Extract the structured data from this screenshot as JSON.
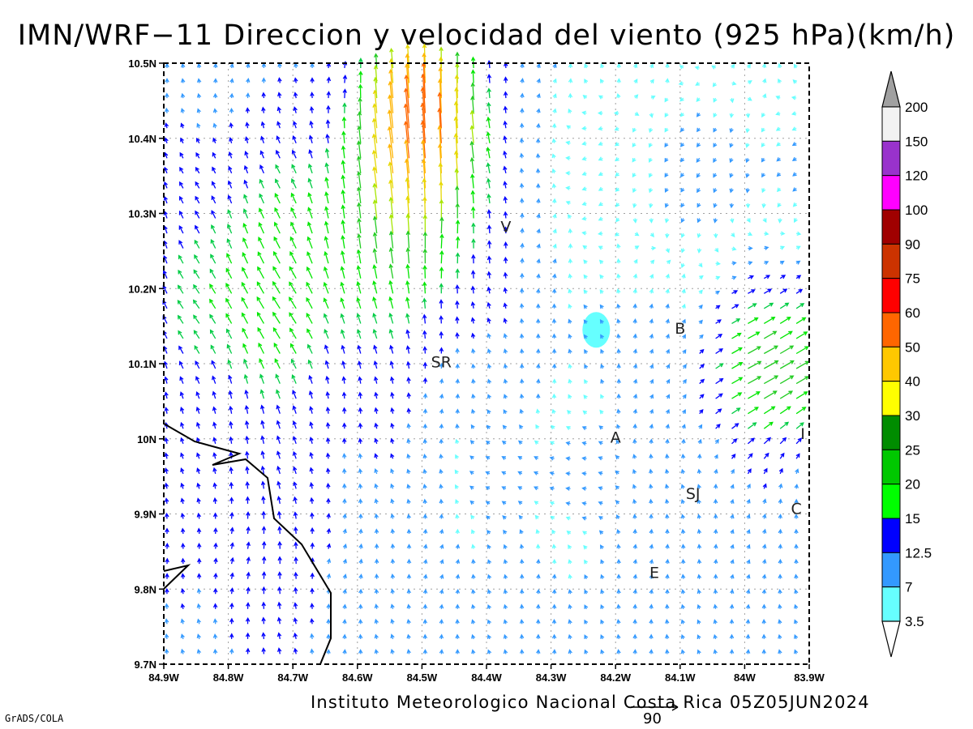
{
  "title": "IMN/WRF−11 Direccion y velocidad del viento (925 hPa)(km/h)",
  "footer": "Instituto Meteorologico Nacional Costa Rica 05Z05JUN2024",
  "credit": "GrADS/COLA",
  "reference_vector_label": "90",
  "colors": {
    "grid": "#a0a0a0",
    "coast": "#000000",
    "plot_bg": "#ffffff"
  },
  "chart_data": {
    "type": "vector_field",
    "title": "IMN/WRF−11 Direccion y velocidad del viento (925 hPa)(km/h)",
    "x_ticks": [
      "84.9W",
      "84.8W",
      "84.7W",
      "84.6W",
      "84.5W",
      "84.4W",
      "84.3W",
      "84.2W",
      "84.1W",
      "84W",
      "83.9W"
    ],
    "y_ticks": [
      "10.5N",
      "10.4N",
      "10.3N",
      "10.2N",
      "10.1N",
      "10N",
      "9.9N",
      "9.8N",
      "9.7N"
    ],
    "lon_range": [
      -84.9,
      -83.9
    ],
    "lat_range": [
      9.7,
      10.5
    ],
    "grid": true,
    "colorbar": {
      "levels": [
        "200",
        "150",
        "120",
        "100",
        "90",
        "75",
        "60",
        "50",
        "40",
        "30",
        "25",
        "20",
        "15",
        "12.5",
        "7",
        "3.5"
      ],
      "colors": [
        "#a0a0a0",
        "#f2f2f2",
        "#9932cc",
        "#ff00ff",
        "#a00000",
        "#cc3300",
        "#ff0000",
        "#ff6600",
        "#ffc800",
        "#ffff00",
        "#008c00",
        "#00c800",
        "#00ff00",
        "#0000ff",
        "#3399ff",
        "#66ffff"
      ],
      "position": "right"
    },
    "stations": [
      {
        "label": "V",
        "lon": -84.37,
        "lat": 10.275
      },
      {
        "label": "B",
        "lon": -84.1,
        "lat": 10.14
      },
      {
        "label": "SR",
        "lon": -84.47,
        "lat": 10.095
      },
      {
        "label": "A",
        "lon": -84.2,
        "lat": 9.995
      },
      {
        "label": "SJ",
        "lon": -84.08,
        "lat": 9.92
      },
      {
        "label": "C",
        "lon": -83.92,
        "lat": 9.9
      },
      {
        "label": "E",
        "lon": -84.14,
        "lat": 9.815
      },
      {
        "label": "I",
        "lon": -83.91,
        "lat": 10.0
      }
    ],
    "calm_patch": {
      "lon": -84.23,
      "lat": 10.145,
      "color": "#66ffff"
    },
    "reference_vector": 90
  }
}
